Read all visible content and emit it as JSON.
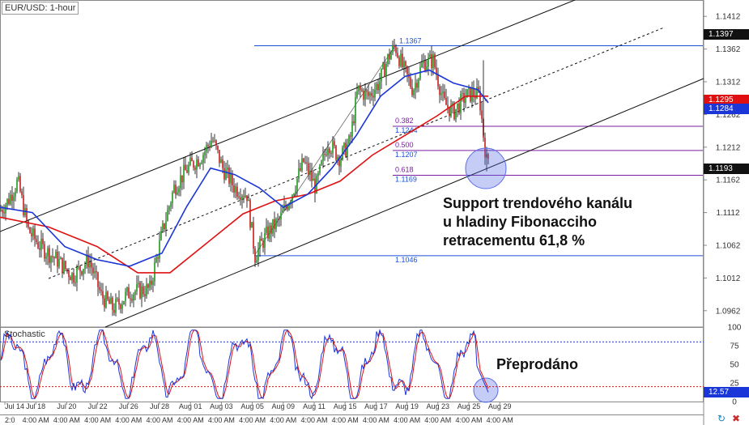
{
  "chart_title": "EUR/USD: 1-hour",
  "stochastic_label": "Stochastic",
  "annotations": {
    "support": [
      "Support trendového kanálu",
      "u hladiny Fibonacciho",
      "retracementu 61,8 %"
    ],
    "oversold": "Přeprodáno"
  },
  "price_tags": {
    "current_high": "1.1397",
    "ma_red": "1.1295",
    "ma_blue": "1.1284",
    "current_price": "1.1193",
    "stochastic_value": "12.57"
  },
  "chart_data": {
    "type": "candlestick",
    "symbol": "EUR/USD",
    "timeframe": "1-hour",
    "y_axis_labels": [
      "1.1412",
      "1.1362",
      "1.1312",
      "1.1262",
      "1.1212",
      "1.1162",
      "1.1112",
      "1.1062",
      "1.1012",
      "1.0962"
    ],
    "ylim": [
      1.0937,
      1.1437
    ],
    "x_axis_labels": [
      "Jul 14",
      "Jul 18",
      "Jul 20",
      "Jul 22",
      "Jul 26",
      "Jul 28",
      "Aug 01",
      "Aug 03",
      "Aug 05",
      "Aug 09",
      "Aug 11",
      "Aug 15",
      "Aug 17",
      "Aug 19",
      "Aug 23",
      "Aug 25",
      "Aug 29"
    ],
    "x_axis_sublabels": [
      "2:0",
      "4:00 AM",
      "4:00 AM",
      "4:00 AM",
      "4:00 AM",
      "4:00 AM",
      "4:00 AM",
      "4:00 AM",
      "4:00 AM",
      "4:00 AM",
      "4:00 AM",
      "4:00 AM",
      "4:00 AM",
      "4:00 AM",
      "4:00 AM",
      "4:00 AM",
      "4:00 AM"
    ],
    "price_path": [
      [
        0,
        1.1115
      ],
      [
        10,
        1.113
      ],
      [
        22,
        1.116
      ],
      [
        35,
        1.1085
      ],
      [
        50,
        1.106
      ],
      [
        70,
        1.104
      ],
      [
        90,
        1.1015
      ],
      [
        110,
        1.104
      ],
      [
        125,
        1.0985
      ],
      [
        140,
        1.0965
      ],
      [
        160,
        1.099
      ],
      [
        185,
        1.0995
      ],
      [
        200,
        1.108
      ],
      [
        215,
        1.115
      ],
      [
        232,
        1.118
      ],
      [
        250,
        1.12
      ],
      [
        262,
        1.1225
      ],
      [
        275,
        1.118
      ],
      [
        290,
        1.115
      ],
      [
        305,
        1.114
      ],
      [
        315,
        1.1046
      ],
      [
        330,
        1.108
      ],
      [
        345,
        1.11
      ],
      [
        360,
        1.114
      ],
      [
        375,
        1.119
      ],
      [
        390,
        1.115
      ],
      [
        405,
        1.122
      ],
      [
        420,
        1.1195
      ],
      [
        432,
        1.122
      ],
      [
        442,
        1.13
      ],
      [
        455,
        1.129
      ],
      [
        468,
        1.131
      ],
      [
        480,
        1.135
      ],
      [
        488,
        1.1367
      ],
      [
        497,
        1.1335
      ],
      [
        510,
        1.13
      ],
      [
        522,
        1.134
      ],
      [
        535,
        1.1345
      ],
      [
        548,
        1.128
      ],
      [
        560,
        1.1265
      ],
      [
        575,
        1.129
      ],
      [
        585,
        1.1295
      ],
      [
        592,
        1.129
      ],
      [
        597,
        1.123
      ],
      [
        601,
        1.119
      ],
      [
        605,
        1.12
      ]
    ],
    "ma_fast_path": [
      [
        0,
        1.112
      ],
      [
        40,
        1.1112
      ],
      [
        80,
        1.106
      ],
      [
        120,
        1.104
      ],
      [
        160,
        1.103
      ],
      [
        200,
        1.105
      ],
      [
        230,
        1.112
      ],
      [
        260,
        1.118
      ],
      [
        290,
        1.117
      ],
      [
        320,
        1.115
      ],
      [
        350,
        1.112
      ],
      [
        380,
        1.114
      ],
      [
        410,
        1.118
      ],
      [
        440,
        1.123
      ],
      [
        470,
        1.129
      ],
      [
        500,
        1.132
      ],
      [
        530,
        1.133
      ],
      [
        560,
        1.131
      ],
      [
        590,
        1.13
      ],
      [
        603,
        1.128
      ]
    ],
    "ma_slow_path": [
      [
        0,
        1.1105
      ],
      [
        60,
        1.109
      ],
      [
        120,
        1.106
      ],
      [
        170,
        1.102
      ],
      [
        210,
        1.102
      ],
      [
        250,
        1.106
      ],
      [
        300,
        1.111
      ],
      [
        340,
        1.113
      ],
      [
        380,
        1.114
      ],
      [
        420,
        1.116
      ],
      [
        460,
        1.12
      ],
      [
        500,
        1.123
      ],
      [
        540,
        1.126
      ],
      [
        575,
        1.129
      ],
      [
        603,
        1.129
      ]
    ],
    "fib_levels": [
      {
        "ratio": "",
        "price": "1.1367"
      },
      {
        "ratio": "0.382",
        "price": "1.1244"
      },
      {
        "ratio": "0.500",
        "price": "1.1207"
      },
      {
        "ratio": "0.618",
        "price": "1.1169"
      },
      {
        "ratio": "",
        "price": "1.1046"
      }
    ],
    "stochastic": {
      "ylim": [
        0,
        100
      ],
      "y_axis_labels": [
        "100",
        "75",
        "50",
        "25",
        "0"
      ],
      "overbought": 80,
      "oversold": 20,
      "current": 12.57
    }
  }
}
